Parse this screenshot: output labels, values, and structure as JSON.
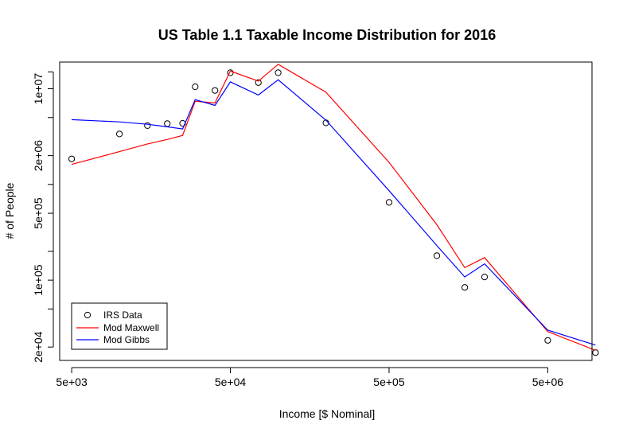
{
  "chart_data": {
    "type": "line",
    "title": "US Table 1.1 Taxable Income Distribution for 2016",
    "xlabel": "Income [$ Nominal]",
    "ylabel": "# of People",
    "x_scale": "log",
    "y_scale": "log",
    "xlim": [
      4200,
      9500000
    ],
    "ylim": [
      14500,
      19000000
    ],
    "x_ticks": [
      {
        "value": 5000,
        "label": "5e+03"
      },
      {
        "value": 50000,
        "label": "5e+04"
      },
      {
        "value": 500000,
        "label": "5e+05"
      },
      {
        "value": 5000000,
        "label": "5e+06"
      }
    ],
    "y_ticks": [
      {
        "value": 20000,
        "label": "2e+04"
      },
      {
        "value": 50000,
        "label": ""
      },
      {
        "value": 100000,
        "label": "1e+05"
      },
      {
        "value": 200000,
        "label": ""
      },
      {
        "value": 500000,
        "label": "5e+05"
      },
      {
        "value": 1000000,
        "label": ""
      },
      {
        "value": 2000000,
        "label": "2e+06"
      },
      {
        "value": 5000000,
        "label": ""
      },
      {
        "value": 10000000,
        "label": "1e+07"
      },
      {
        "value": 15000000,
        "label": ""
      }
    ],
    "grid": false,
    "legend_position": "bottom-left",
    "series": [
      {
        "name": "IRS Data",
        "kind": "points",
        "color": "#000000",
        "points": [
          [
            5000,
            1850000
          ],
          [
            10000,
            3370000
          ],
          [
            15000,
            4120000
          ],
          [
            20000,
            4320000
          ],
          [
            25000,
            4350000
          ],
          [
            30000,
            10500000
          ],
          [
            40000,
            9600000
          ],
          [
            50000,
            14700000
          ],
          [
            75000,
            11600000
          ],
          [
            100000,
            14700000
          ],
          [
            200000,
            4400000
          ],
          [
            500000,
            650000
          ],
          [
            1000000,
            180000
          ],
          [
            1500000,
            84000
          ],
          [
            2000000,
            108000
          ],
          [
            5000000,
            23500.0
          ],
          [
            10000000,
            17500
          ]
        ]
      },
      {
        "name": "Mod Maxwell",
        "kind": "line",
        "color": "#ff0000",
        "points": [
          [
            5000,
            1620000
          ],
          [
            10000,
            2200000
          ],
          [
            15000,
            2650000
          ],
          [
            20000,
            2950000
          ],
          [
            25000,
            3250000
          ],
          [
            30000,
            7400000
          ],
          [
            40000,
            7100000
          ],
          [
            50000,
            15300000
          ],
          [
            75000,
            12000000
          ],
          [
            100000,
            18000000
          ],
          [
            200000,
            9200000
          ],
          [
            500000,
            1700000
          ],
          [
            1000000,
            380000
          ],
          [
            1500000,
            135000
          ],
          [
            2000000,
            172000
          ],
          [
            5000000,
            29000
          ],
          [
            10000000,
            18500
          ]
        ]
      },
      {
        "name": "Mod Gibbs",
        "kind": "line",
        "color": "#0000ff",
        "points": [
          [
            5000,
            4750000
          ],
          [
            10000,
            4500000
          ],
          [
            15000,
            4250000
          ],
          [
            20000,
            4000000
          ],
          [
            25000,
            3800000
          ],
          [
            30000,
            7700000
          ],
          [
            40000,
            6700000
          ],
          [
            50000,
            11800000
          ],
          [
            75000,
            8600000
          ],
          [
            100000,
            12400000
          ],
          [
            200000,
            4700000
          ],
          [
            500000,
            860000
          ],
          [
            1000000,
            230000
          ],
          [
            1500000,
            108000
          ],
          [
            2000000,
            148000
          ],
          [
            5000000,
            30000
          ],
          [
            10000000,
            21000
          ]
        ]
      }
    ]
  }
}
